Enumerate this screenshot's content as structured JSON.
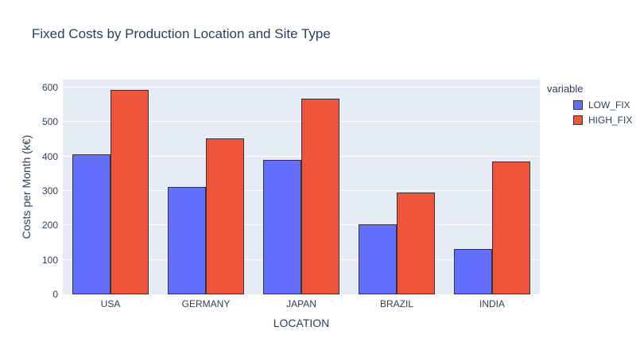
{
  "title": "Fixed Costs by Production Location and Site Type",
  "colors": {
    "low_fix": "#636EFA",
    "high_fix": "#EF553B",
    "plot_background": "#E5ECF6",
    "gridline": "#FFFFFF",
    "text": "#2a3f5f",
    "bar_border": "#333333"
  },
  "chart_data": {
    "type": "bar",
    "mode": "grouped",
    "title": "Fixed Costs by Production Location and Site Type",
    "xlabel": "LOCATION",
    "ylabel": "Costs per Month (k€)",
    "categories": [
      "USA",
      "GERMANY",
      "JAPAN",
      "BRAZIL",
      "INDIA"
    ],
    "series": [
      {
        "name": "LOW_FIX",
        "color": "#636EFA",
        "values": [
          405,
          311,
          390,
          203,
          132
        ]
      },
      {
        "name": "HIGH_FIX",
        "color": "#EF553B",
        "values": [
          592,
          453,
          568,
          295,
          385
        ]
      }
    ],
    "ylim": [
      0,
      623
    ],
    "yticks": [
      0,
      100,
      200,
      300,
      400,
      500,
      600
    ],
    "grid": true,
    "legend_position": "right",
    "legend_title": "variable"
  }
}
